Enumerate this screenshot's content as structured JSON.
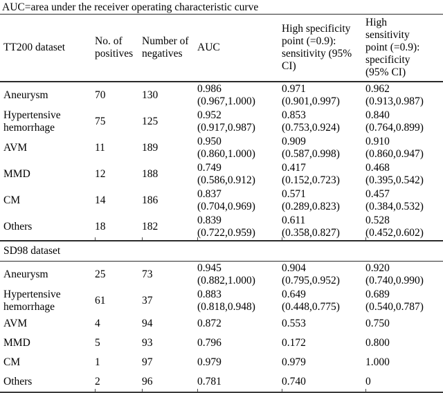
{
  "caption": "AUC=area under the receiver operating characteristic curve",
  "table": {
    "columns": [
      {
        "id": "dataset",
        "label": "TT200 dataset"
      },
      {
        "id": "positives",
        "label": "No. of positives"
      },
      {
        "id": "negatives",
        "label": "Number of negatives"
      },
      {
        "id": "auc",
        "label": "AUC"
      },
      {
        "id": "high_specificity",
        "label": "High specificity point (=0.9): sensitivity (95% CI)"
      },
      {
        "id": "high_sensitivity",
        "label": "High sensitivity point (=0.9): specificity (95% CI)"
      }
    ],
    "sections": [
      {
        "rows": [
          {
            "label": "Aneurysm",
            "positives": "70",
            "negatives": "130",
            "auc": "0.986",
            "auc_ci": "(0.967,1.000)",
            "sensitivity": "0.971",
            "sensitivity_ci": "(0.901,0.997)",
            "specificity": "0.962",
            "specificity_ci": "(0.913,0.987)"
          },
          {
            "label": "Hypertensive hemorrhage",
            "positives": "75",
            "negatives": "125",
            "auc": "0.952",
            "auc_ci": "(0.917,0.987)",
            "sensitivity": "0.853",
            "sensitivity_ci": "(0.753,0.924)",
            "specificity": "0.840",
            "specificity_ci": "(0.764,0.899)"
          },
          {
            "label": "AVM",
            "positives": "11",
            "negatives": "189",
            "auc": "0.950",
            "auc_ci": "(0.860,1.000)",
            "sensitivity": "0.909",
            "sensitivity_ci": "(0.587,0.998)",
            "specificity": "0.910",
            "specificity_ci": "(0.860,0.947)"
          },
          {
            "label": "MMD",
            "positives": "12",
            "negatives": "188",
            "auc": "0.749",
            "auc_ci": "(0.586,0.912)",
            "sensitivity": "0.417",
            "sensitivity_ci": "(0.152,0.723)",
            "specificity": "0.468",
            "specificity_ci": "(0.395,0.542)"
          },
          {
            "label": "CM",
            "positives": "14",
            "negatives": "186",
            "auc": "0.837",
            "auc_ci": "(0.704,0.969)",
            "sensitivity": "0.571",
            "sensitivity_ci": "(0.289,0.823)",
            "specificity": "0.457",
            "specificity_ci": "(0.384,0.532)"
          },
          {
            "label": "Others",
            "positives": "18",
            "negatives": "182",
            "auc": "0.839",
            "auc_ci": "(0.722,0.959)",
            "sensitivity": "0.611",
            "sensitivity_ci": "(0.358,0.827)",
            "specificity": "0.528",
            "specificity_ci": "(0.452,0.602)"
          }
        ]
      },
      {
        "title": "SD98 dataset",
        "rows": [
          {
            "label": "Aneurysm",
            "positives": "25",
            "negatives": "73",
            "auc": "0.945",
            "auc_ci": "(0.882,1.000)",
            "sensitivity": "0.904",
            "sensitivity_ci": "(0.795,0.952)",
            "specificity": "0.920",
            "specificity_ci": "(0.740,0.990)"
          },
          {
            "label": "Hypertensive hemorrhage",
            "positives": "61",
            "negatives": "37",
            "auc": "0.883",
            "auc_ci": "(0.818,0.948)",
            "sensitivity": "0.649",
            "sensitivity_ci": "(0.448,0.775)",
            "specificity": "0.689",
            "specificity_ci": "(0.540,0.787)"
          },
          {
            "label": "AVM",
            "positives": "4",
            "negatives": "94",
            "auc": "0.872",
            "auc_ci": "",
            "sensitivity": "0.553",
            "sensitivity_ci": "",
            "specificity": "0.750",
            "specificity_ci": ""
          },
          {
            "label": "MMD",
            "positives": "5",
            "negatives": "93",
            "auc": "0.796",
            "auc_ci": "",
            "sensitivity": "0.172",
            "sensitivity_ci": "",
            "specificity": "0.800",
            "specificity_ci": ""
          },
          {
            "label": "CM",
            "positives": "1",
            "negatives": "97",
            "auc": "0.979",
            "auc_ci": "",
            "sensitivity": "0.979",
            "sensitivity_ci": "",
            "specificity": "1.000",
            "specificity_ci": ""
          },
          {
            "label": "Others",
            "positives": "2",
            "negatives": "96",
            "auc": "0.781",
            "auc_ci": "",
            "sensitivity": "0.740",
            "sensitivity_ci": "",
            "specificity": "0",
            "specificity_ci": ""
          }
        ]
      }
    ]
  }
}
